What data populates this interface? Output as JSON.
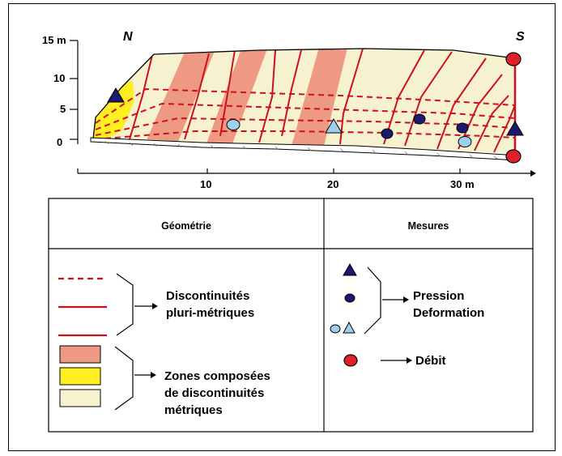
{
  "section": {
    "axis_ticks_y": [
      "15 m",
      "10",
      "5",
      "0"
    ],
    "axis_ticks_x": [
      "10",
      "20",
      "30 m"
    ],
    "north_label": "N",
    "south_label": "S"
  },
  "legend": {
    "geometry_header": "Géométrie",
    "measures_header": "Mesures",
    "discontinuities_line1": "Discontinuités",
    "discontinuities_line2": "pluri-métriques",
    "zones_line1": "Zones composées",
    "zones_line2": "de discontinuités",
    "zones_line3": "métriques",
    "pressure_line1": "Pression",
    "pressure_line2": "Deformation",
    "flow_label": "Débit"
  },
  "colors": {
    "salmon_zone": "#ee9a82",
    "yellow_zone": "#ffee22",
    "cream_zone": "#f6f2cf",
    "red_line": "#cc1020",
    "navy_marker": "#1a1a6e",
    "light_blue_marker": "#9ed0ec",
    "red_marker": "#e0202a"
  }
}
